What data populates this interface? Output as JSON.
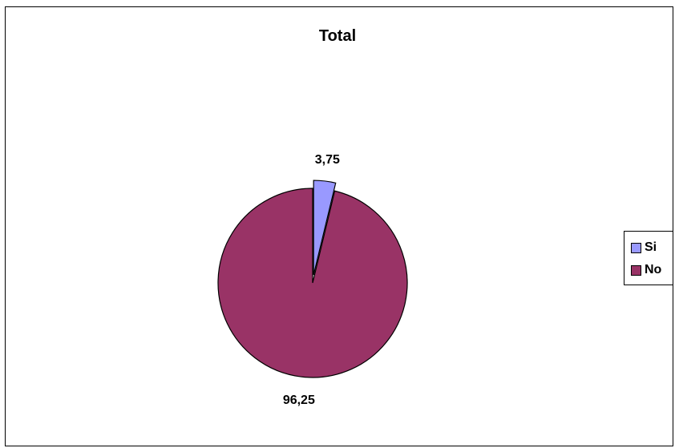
{
  "chart_data": {
    "type": "pie",
    "title": "Total",
    "slices": [
      {
        "label": "Si",
        "value": 3.75,
        "data_label": "3,75",
        "color": "#9999FF",
        "exploded": true
      },
      {
        "label": "No",
        "value": 96.25,
        "data_label": "96,25",
        "color": "#993366",
        "exploded": false
      }
    ],
    "legend_placement": "right"
  }
}
